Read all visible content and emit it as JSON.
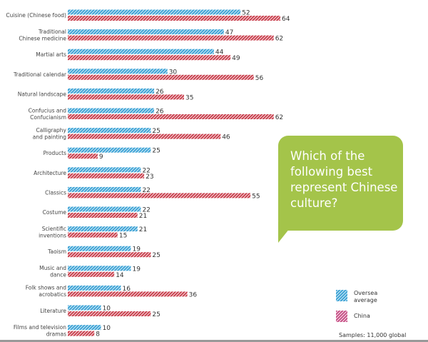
{
  "chart_data": {
    "type": "bar",
    "orientation": "horizontal",
    "title": "Which of the following best represent Chinese culture?",
    "categories": [
      "Cuisine (Chinese food)",
      "Traditional|Chinese medicine",
      "Martial arts",
      "Traditional calendar",
      "Natural landscape",
      "Confucius and|Confucianism",
      "Calligraphy|and painting",
      "Products",
      "Architecture",
      "Classics",
      "Costume",
      "Scientific|inventions",
      "Taoism",
      "Music and|dance",
      "Folk shows and|acrobatics",
      "Literature",
      "Films and television|dramas"
    ],
    "series": [
      {
        "name": "Oversea average",
        "color": "#3aa3d6",
        "values": [
          52,
          47,
          44,
          30,
          26,
          26,
          25,
          25,
          22,
          22,
          22,
          21,
          19,
          19,
          16,
          10,
          10
        ]
      },
      {
        "name": "China",
        "color": "#c83a4a",
        "values": [
          64,
          62,
          49,
          56,
          35,
          62,
          46,
          9,
          23,
          55,
          21,
          15,
          25,
          14,
          36,
          25,
          8
        ]
      }
    ],
    "legend": {
      "placement": "bottom-right",
      "items": [
        {
          "label": "Oversea average",
          "color": "#3aa3d6"
        },
        {
          "label": "China",
          "color": "#c0407a"
        }
      ]
    },
    "xlim": [
      0,
      64
    ],
    "grid": false,
    "bar_pattern": "diagonal-hatch",
    "note": "Samples: 11,000 global"
  },
  "bubble_color": "#a4c44a"
}
